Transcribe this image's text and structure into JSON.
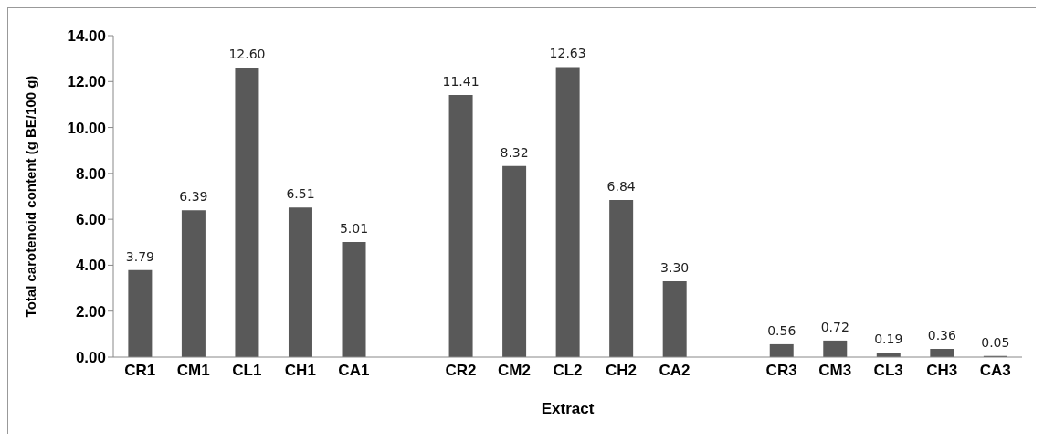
{
  "chart_data": {
    "type": "bar",
    "xlabel": "Extract",
    "ylabel": "Total carotenoid content (g BE/100 g)",
    "categories": [
      "CR1",
      "CM1",
      "CL1",
      "CH1",
      "CA1",
      null,
      "CR2",
      "CM2",
      "CL2",
      "CH2",
      "CA2",
      null,
      "CR3",
      "CM3",
      "CL3",
      "CH3",
      "CA3"
    ],
    "values": [
      3.79,
      6.39,
      12.6,
      6.51,
      5.01,
      null,
      11.41,
      8.32,
      12.63,
      6.84,
      3.3,
      null,
      0.56,
      0.72,
      0.19,
      0.36,
      0.05
    ],
    "value_labels": [
      "3.79",
      "6.39",
      "12.60",
      "6.51",
      "5.01",
      null,
      "11.41",
      "8.32",
      "12.63",
      "6.84",
      "3.30",
      null,
      "0.56",
      "0.72",
      "0.19",
      "0.36",
      "0.05"
    ],
    "color": "#595959",
    "ylim": [
      0,
      14
    ],
    "yticks": [
      {
        "value": 0,
        "label": "0.00"
      },
      {
        "value": 2,
        "label": "2.00"
      },
      {
        "value": 4,
        "label": "4.00"
      },
      {
        "value": 6,
        "label": "6.00"
      },
      {
        "value": 8,
        "label": "8.00"
      },
      {
        "value": 10,
        "label": "10.00"
      },
      {
        "value": 12,
        "label": "12.00"
      },
      {
        "value": 14,
        "label": "14.00"
      }
    ],
    "grid": false,
    "legend": false
  }
}
